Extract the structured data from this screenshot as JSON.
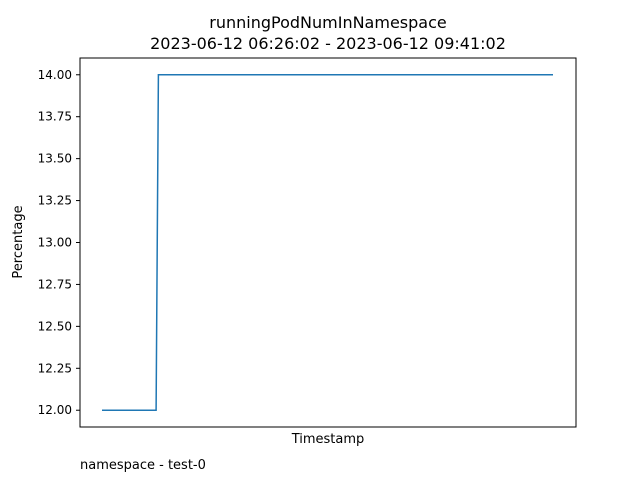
{
  "chart_data": {
    "type": "line",
    "title": "runningPodNumInNamespace",
    "subtitle": "2023-06-12 06:26:02 - 2023-06-12 09:41:02",
    "xlabel": "Timestamp",
    "ylabel": "Percentage",
    "ylim": [
      11.9,
      14.1
    ],
    "yticks": [
      "12.00",
      "12.25",
      "12.50",
      "12.75",
      "13.00",
      "13.25",
      "13.50",
      "13.75",
      "14.00"
    ],
    "grid": false,
    "x_tick_labels_shown": false,
    "series": [
      {
        "color": "#1f77b4",
        "x": [
          0,
          0.12,
          0.125,
          1
        ],
        "values": [
          12,
          12,
          14,
          14
        ]
      }
    ]
  },
  "footer": {
    "note": "namespace - test-0"
  }
}
